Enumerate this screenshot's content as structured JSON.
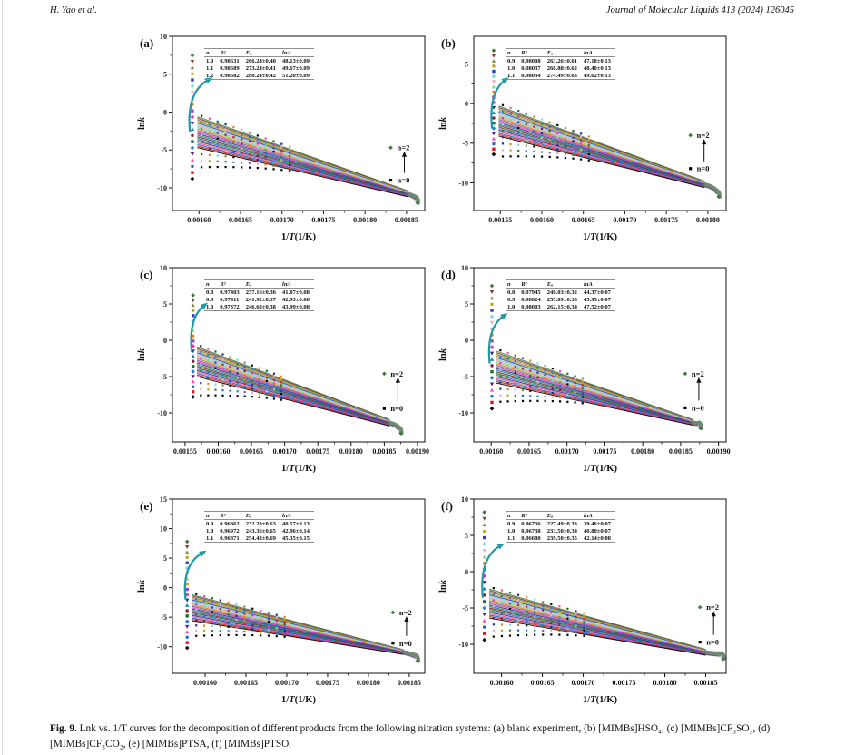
{
  "page": {
    "header_left": "H. Yao et al.",
    "header_right": "Journal of Molecular Liquids 413 (2024) 126045",
    "caption_label": "Fig. 9.",
    "caption_text": "Lnk vs. 1/T curves for the decomposition of different products from the following nitration systems: (a) blank experiment, (b) [MIMBs]HSO₄, (c) [MIMBs]CF₃SO₃, (d) [MIMBs]CF₃CO₂, (e) [MIMBs]PTSA, (f) [MIMBs]PTSO."
  },
  "colors": {
    "series_top_to_bottom": [
      "#3a7d3a",
      "#8b3535",
      "#8a8a50",
      "#b8a818",
      "#2743c8",
      "#7fd8e8",
      "#f2a8c8",
      "#8fd88f",
      "#e8821f",
      "#8a52cc",
      "#d836c8",
      "#223090",
      "#188a96",
      "#7a2048",
      "#1f6f28",
      "#2a7fe0",
      "#5a1f8a",
      "#ff4da6",
      "#1f66d0",
      "#e31a1a",
      "#000000"
    ],
    "arrow": "#1f98a8",
    "tail": "#5f7d5f",
    "tail_underline": "#6a4f8a",
    "fan_band": "#93936a",
    "axis": "#111111",
    "n2_marker": "#3a7d3a",
    "n0_marker": "#000000"
  },
  "chart_data": [
    {
      "id": "a",
      "label": "(a)",
      "type": "scatter",
      "xlabel": "1/T(1/K)",
      "ylabel": "lnk",
      "x_ticks": [
        "0.00160",
        "0.00165",
        "0.00170",
        "0.00175",
        "0.00180",
        "0.00185"
      ],
      "y_ticks": [
        10,
        5,
        0,
        -5,
        -10
      ],
      "xlim": [
        0.001568,
        0.001872
      ],
      "ylim": [
        -13,
        10
      ],
      "series_note": "21 series, reaction order n = 0 to 2 step 0.1 (black n=0 bottom to green n=2 top)",
      "table": {
        "headers": [
          "n",
          "R²",
          "Eₐ",
          "lnA"
        ],
        "rows": [
          [
            "1.0",
            "0.98631",
            "266.24±0.40",
            "48.13±0.09"
          ],
          [
            "1.1",
            "0.98689",
            "273.24±0.41",
            "49.67±0.09"
          ],
          [
            "1.2",
            "0.98682",
            "280.24±0.42",
            "51.20±0.09"
          ]
        ]
      },
      "annotations": {
        "top": "n=2",
        "bottom": "n=0"
      },
      "geom": {
        "left_col": {
          "x": 0.001592,
          "top": 7.5,
          "bottom": -8.8
        },
        "fan": {
          "x0": 0.001598,
          "y0_top": -0.6,
          "y0_bot": -4.7,
          "x1": 0.001852,
          "y1_top": -10.4,
          "y1_bot": -11.2
        },
        "arrow": {
          "x0": 0.001589,
          "y0": -2.6,
          "x1": 0.001612,
          "y1": 4.3
        },
        "ann": {
          "x": 0.001831,
          "n2_y": -4.7,
          "n0_y": -9.0
        },
        "tail": {
          "x": 0.001864,
          "y": -11.5
        }
      }
    },
    {
      "id": "b",
      "label": "(b)",
      "type": "scatter",
      "xlabel": "1/T(1/K)",
      "ylabel": "lnk",
      "x_ticks": [
        "0.00155",
        "0.00160",
        "0.00165",
        "0.00170",
        "0.00175",
        "0.00180"
      ],
      "y_ticks": [
        5,
        0,
        -5,
        -10
      ],
      "xlim": [
        0.001518,
        0.001822
      ],
      "ylim": [
        -13.5,
        8.5
      ],
      "series_note": "21 series, reaction order n = 0 to 2 step 0.1",
      "table": {
        "headers": [
          "n",
          "R²",
          "Eₐ",
          "lnA"
        ],
        "rows": [
          [
            "0.9",
            "0.98008",
            "263.26±0.61",
            "47.18±0.13"
          ],
          [
            "1.0",
            "0.98037",
            "268.88±0.62",
            "48.40±0.13"
          ],
          [
            "1.1",
            "0.98034",
            "274.49±0.63",
            "49.62±0.13"
          ]
        ]
      },
      "annotations": {
        "top": "n=2",
        "bottom": "n=0"
      },
      "geom": {
        "left_col": {
          "x": 0.001542,
          "top": 6.7,
          "bottom": -6.4
        },
        "fan": {
          "x0": 0.001548,
          "y0_top": -0.3,
          "y0_bot": -4.1,
          "x1": 0.001796,
          "y1_top": -9.8,
          "y1_bot": -10.6
        },
        "arrow": {
          "x0": 0.00154,
          "y0": -3.1,
          "x1": 0.001556,
          "y1": 3.0
        },
        "ann": {
          "x": 0.001779,
          "n2_y": -4.0,
          "n0_y": -8.2
        },
        "tail": {
          "x": 0.001814,
          "y": -11.3
        }
      }
    },
    {
      "id": "c",
      "label": "(c)",
      "type": "scatter",
      "xlabel": "1/T(1/K)",
      "ylabel": "lnk",
      "x_ticks": [
        "0.00155",
        "0.00160",
        "0.00165",
        "0.00170",
        "0.00175",
        "0.00180",
        "0.00185",
        "0.00190"
      ],
      "y_ticks": [
        10,
        5,
        0,
        -5,
        -10
      ],
      "xlim": [
        0.001531,
        0.001911
      ],
      "ylim": [
        -14,
        10
      ],
      "series_note": "21 series, reaction order n = 0 to 2 step 0.1",
      "table": {
        "headers": [
          "n",
          "R²",
          "Eₐ",
          "lnA"
        ],
        "rows": [
          [
            "0.8",
            "0.97403",
            "237.16±0.36",
            "41.87±0.08"
          ],
          [
            "0.9",
            "0.97411",
            "241.92±0.37",
            "42.93±0.08"
          ],
          [
            "1.0",
            "0.97372",
            "246.68±0.38",
            "43.99±0.08"
          ]
        ]
      },
      "annotations": {
        "top": "n=2",
        "bottom": "n=0"
      },
      "geom": {
        "left_col": {
          "x": 0.001562,
          "top": 6.2,
          "bottom": -7.8
        },
        "fan": {
          "x0": 0.001568,
          "y0_top": -0.9,
          "y0_bot": -5.0,
          "x1": 0.001858,
          "y1_top": -10.9,
          "y1_bot": -11.8
        },
        "arrow": {
          "x0": 0.00156,
          "y0": -1.6,
          "x1": 0.001579,
          "y1": 4.8
        },
        "ann": {
          "x": 0.00185,
          "n2_y": -4.6,
          "n0_y": -9.4
        },
        "tail": {
          "x": 0.001876,
          "y": -12.3
        }
      }
    },
    {
      "id": "d",
      "label": "(d)",
      "type": "scatter",
      "xlabel": "1/T(1/K)",
      "ylabel": "lnk",
      "x_ticks": [
        "0.00160",
        "0.00165",
        "0.00170",
        "0.00175",
        "0.00180",
        "0.00185",
        "0.00190"
      ],
      "y_ticks": [
        10,
        5,
        0,
        -5,
        -10
      ],
      "xlim": [
        0.001577,
        0.00191
      ],
      "ylim": [
        -14,
        10
      ],
      "series_note": "21 series, reaction order n = 0 to 2 step 0.1",
      "table": {
        "headers": [
          "n",
          "R²",
          "Eₐ",
          "lnA"
        ],
        "rows": [
          [
            "0.8",
            "0.97945",
            "248.03±0.32",
            "44.37±0.07"
          ],
          [
            "0.9",
            "0.98024",
            "255.09±0.33",
            "45.95±0.07"
          ],
          [
            "1.0",
            "0.98003",
            "262.15±0.34",
            "47.52±0.07"
          ]
        ]
      },
      "annotations": {
        "top": "n=2",
        "bottom": "n=0"
      },
      "geom": {
        "left_col": {
          "x": 0.001601,
          "top": 7.5,
          "bottom": -9.4
        },
        "fan": {
          "x0": 0.001607,
          "y0_top": -1.5,
          "y0_bot": -5.9,
          "x1": 0.001866,
          "y1_top": -10.9,
          "y1_bot": -11.7
        },
        "arrow": {
          "x0": 0.001598,
          "y0": -3.2,
          "x1": 0.001617,
          "y1": 3.4
        },
        "ann": {
          "x": 0.001856,
          "n2_y": -4.6,
          "n0_y": -9.3
        },
        "tail": {
          "x": 0.001877,
          "y": -11.6
        }
      }
    },
    {
      "id": "e",
      "label": "(e)",
      "type": "scatter",
      "xlabel": "1/T(1/K)",
      "ylabel": "lnk",
      "x_ticks": [
        "0.00160",
        "0.00165",
        "0.00170",
        "0.00175",
        "0.00180",
        "0.00185"
      ],
      "y_ticks": [
        15,
        10,
        5,
        0,
        -5,
        -10
      ],
      "xlim": [
        0.00156,
        0.001869
      ],
      "ylim": [
        -14.5,
        15
      ],
      "series_note": "21 series, reaction order n = 0 to 2 step 0.1",
      "table": {
        "headers": [
          "n",
          "R²",
          "Eₐ",
          "lnA"
        ],
        "rows": [
          [
            "0.9",
            "0.96862",
            "232.28±0.63",
            "40.57±0.13"
          ],
          [
            "1.0",
            "0.96972",
            "243.36±0.65",
            "42.96±0.14"
          ],
          [
            "1.1",
            "0.96871",
            "254.43±0.69",
            "45.35±0.15"
          ]
        ]
      },
      "annotations": {
        "top": "n=2",
        "bottom": "n=0"
      },
      "geom": {
        "left_col": {
          "x": 0.001578,
          "top": 7.8,
          "bottom": -10.2
        },
        "fan": {
          "x0": 0.001584,
          "y0_top": -1.2,
          "y0_bot": -5.6,
          "x1": 0.001843,
          "y1_top": -10.5,
          "y1_bot": -11.3
        },
        "arrow": {
          "x0": 0.001576,
          "y0": -2.0,
          "x1": 0.001597,
          "y1": 5.9
        },
        "ann": {
          "x": 0.00183,
          "n2_y": -4.2,
          "n0_y": -9.4
        },
        "tail": {
          "x": 0.001861,
          "y": -11.8
        }
      }
    },
    {
      "id": "f",
      "label": "(f)",
      "type": "scatter",
      "xlabel": "1/T(1/K)",
      "ylabel": "lnk",
      "x_ticks": [
        "0.00160",
        "0.00165",
        "0.00170",
        "0.00175",
        "0.00180",
        "0.00185"
      ],
      "y_ticks": [
        10,
        5,
        0,
        -5,
        -10
      ],
      "xlim": [
        0.001566,
        0.001875
      ],
      "ylim": [
        -14,
        10
      ],
      "series_note": "21 series, reaction order n = 0 to 2 step 0.1",
      "table": {
        "headers": [
          "n",
          "R²",
          "Eₐ",
          "lnA"
        ],
        "rows": [
          [
            "0.9",
            "0.96736",
            "227.49±0.33",
            "39.46±0.07"
          ],
          [
            "1.0",
            "0.96738",
            "233.50±0.34",
            "40.80±0.07"
          ],
          [
            "1.1",
            "0.96680",
            "239.50±0.35",
            "42.14±0.08"
          ]
        ]
      },
      "annotations": {
        "top": "n=2",
        "bottom": "n=0"
      },
      "geom": {
        "left_col": {
          "x": 0.001579,
          "top": 8.2,
          "bottom": -9.4
        },
        "fan": {
          "x0": 0.001585,
          "y0_top": -2.4,
          "y0_bot": -6.4,
          "x1": 0.00185,
          "y1_top": -10.7,
          "y1_bot": -11.5
        },
        "arrow": {
          "x0": 0.001577,
          "y0": -3.6,
          "x1": 0.001599,
          "y1": 3.6
        },
        "ann": {
          "x": 0.001843,
          "n2_y": -4.9,
          "n0_y": -9.7
        },
        "tail": {
          "x": 0.001872,
          "y": -11.5
        }
      }
    }
  ]
}
